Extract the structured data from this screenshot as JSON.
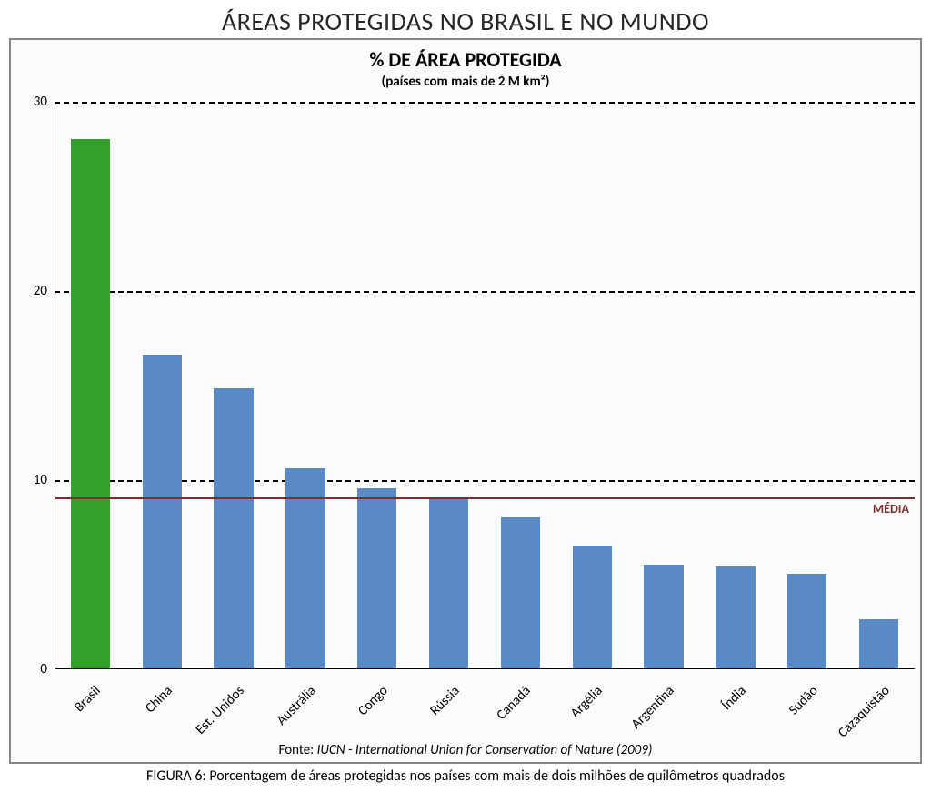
{
  "main_title": "ÁREAS PROTEGIDAS NO BRASIL E NO MUNDO",
  "chart": {
    "type": "bar",
    "title": "%  DE ÁREA PROTEGIDA",
    "subtitle": "(países com mais de 2 M km²)",
    "categories": [
      "Brasil",
      "China",
      "Est. Unidos",
      "Austrália",
      "Congo",
      "Rússia",
      "Canadá",
      "Argélia",
      "Argentina",
      "Índia",
      "Sudão",
      "Cazaquistão"
    ],
    "values": [
      28.0,
      16.6,
      14.8,
      10.6,
      9.5,
      9.0,
      8.0,
      6.5,
      5.5,
      5.4,
      5.0,
      2.6
    ],
    "bar_colors": [
      "#33a02c",
      "#5a8ac6",
      "#5a8ac6",
      "#5a8ac6",
      "#5a8ac6",
      "#5a8ac6",
      "#5a8ac6",
      "#5a8ac6",
      "#5a8ac6",
      "#5a8ac6",
      "#5a8ac6",
      "#5a8ac6"
    ],
    "ylim": [
      0,
      30
    ],
    "yticks": [
      0,
      10,
      20,
      30
    ],
    "gridline_color": "#000000",
    "gridline_dash": true,
    "background_color": "#fbfbfb",
    "frame_border_color": "#868686",
    "bar_width_ratio": 0.55,
    "media_value": 9.1,
    "media_color": "#7a2e2e",
    "media_label": "MÉDIA",
    "title_fontsize": 22,
    "subtitle_fontsize": 15,
    "ytick_fontsize": 15,
    "xlabel_fontsize": 15,
    "xlabel_rotation_deg": -45,
    "source_prefix": "Fonte: ",
    "source_italic": "IUCN - International Union for Conservation of Nature (2009)"
  },
  "caption": "FIGURA 6: Porcentagem de áreas protegidas nos países com mais de dois milhões de quilômetros quadrados"
}
